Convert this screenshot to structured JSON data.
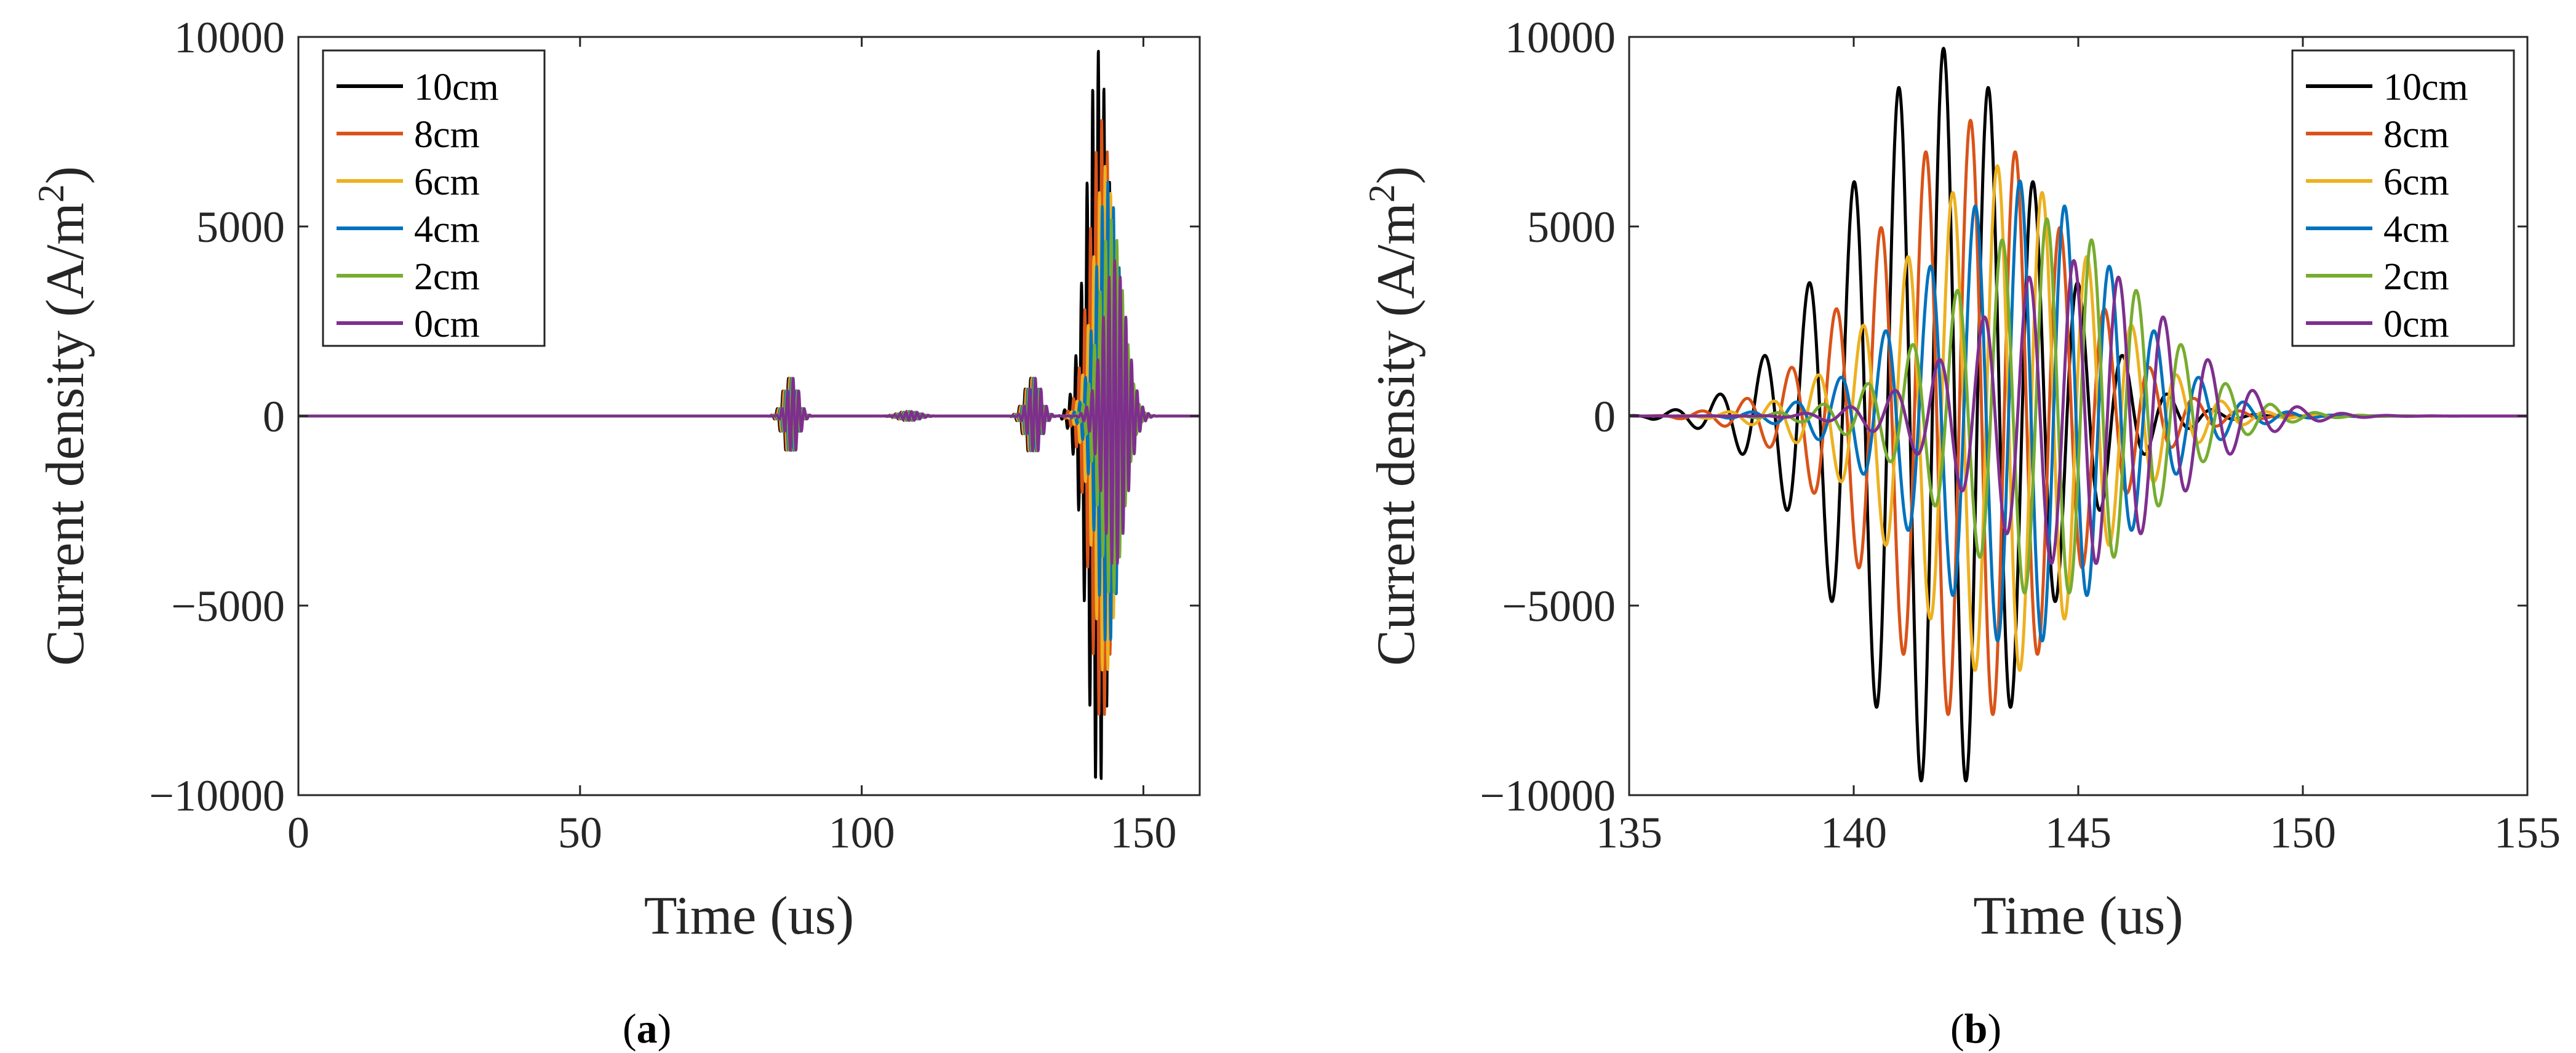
{
  "figure": {
    "panel_labels": [
      {
        "open": "(",
        "letter": "a",
        "close": ")"
      },
      {
        "open": "(",
        "letter": "b",
        "close": ")"
      }
    ]
  },
  "legend_entries": [
    "10cm",
    "8cm",
    "6cm",
    "4cm",
    "2cm",
    "0cm"
  ],
  "series_colors": [
    "#000000",
    "#D95319",
    "#EDB120",
    "#0072BD",
    "#77AC30",
    "#7E2F8E"
  ],
  "chart_data": [
    {
      "type": "line",
      "panel": "a",
      "title": "",
      "xlabel": "Time (us)",
      "ylabel_main": "Current density (A/m",
      "ylabel_sup": "2",
      "ylabel_tail": ")",
      "xlim": [
        0,
        160
      ],
      "ylim": [
        -10000,
        10000
      ],
      "xticks": [
        0,
        50,
        100,
        150
      ],
      "yticks": [
        -10000,
        -5000,
        0,
        5000,
        10000
      ],
      "ytick_labels": [
        "−10000",
        "−5000",
        "0",
        "5000",
        "10000"
      ],
      "legend_position": "top-left",
      "grid": false,
      "series": [
        {
          "name": "10cm",
          "color": "#000000",
          "peak_time": 142.0,
          "peak": 9700,
          "min": -9900,
          "delay": 0.0
        },
        {
          "name": "8cm",
          "color": "#D95319",
          "peak_time": 142.6,
          "peak": 7800,
          "min": -8100,
          "delay": 0.55
        },
        {
          "name": "6cm",
          "color": "#EDB120",
          "peak_time": 143.2,
          "peak": 6600,
          "min": -6900,
          "delay": 1.1
        },
        {
          "name": "4cm",
          "color": "#0072BD",
          "peak_time": 143.7,
          "peak": 6200,
          "min": -6100,
          "delay": 1.65
        },
        {
          "name": "2cm",
          "color": "#77AC30",
          "peak_time": 144.3,
          "peak": 5200,
          "min": -4800,
          "delay": 2.2
        },
        {
          "name": "0cm",
          "color": "#7E2F8E",
          "peak_time": 144.9,
          "peak": 4100,
          "min": -4000,
          "delay": 2.75
        }
      ],
      "secondary_bursts": [
        {
          "time": 87,
          "amplitude": 1000,
          "width": 2.0
        },
        {
          "time": 108,
          "amplitude": 120,
          "width": 3.0
        },
        {
          "time": 130,
          "amplitude": 1000,
          "width": 2.2
        }
      ]
    },
    {
      "type": "line",
      "panel": "b",
      "title": "",
      "xlabel": "Time (us)",
      "ylabel_main": "Current density (A/m",
      "ylabel_sup": "2",
      "ylabel_tail": ")",
      "xlim": [
        135,
        155
      ],
      "ylim": [
        -10000,
        10000
      ],
      "xticks": [
        135,
        140,
        145,
        150,
        155
      ],
      "yticks": [
        -10000,
        -5000,
        0,
        5000,
        10000
      ],
      "ytick_labels": [
        "−10000",
        "−5000",
        "0",
        "5000",
        "10000"
      ],
      "legend_position": "top-right",
      "grid": false,
      "series": [
        {
          "name": "10cm",
          "color": "#000000",
          "peak_time": 142.0,
          "peak": 9700,
          "min": -9900,
          "delay": 0.0
        },
        {
          "name": "8cm",
          "color": "#D95319",
          "peak_time": 142.6,
          "peak": 7800,
          "min": -8100,
          "delay": 0.55
        },
        {
          "name": "6cm",
          "color": "#EDB120",
          "peak_time": 143.2,
          "peak": 6600,
          "min": -6900,
          "delay": 1.1
        },
        {
          "name": "4cm",
          "color": "#0072BD",
          "peak_time": 143.7,
          "peak": 6200,
          "min": -6100,
          "delay": 1.65
        },
        {
          "name": "2cm",
          "color": "#77AC30",
          "peak_time": 144.3,
          "peak": 5200,
          "min": -4800,
          "delay": 2.2
        },
        {
          "name": "0cm",
          "color": "#7E2F8E",
          "peak_time": 144.9,
          "peak": 4100,
          "min": -4000,
          "delay": 2.75
        }
      ],
      "carrier_period_us": 1.0
    }
  ]
}
